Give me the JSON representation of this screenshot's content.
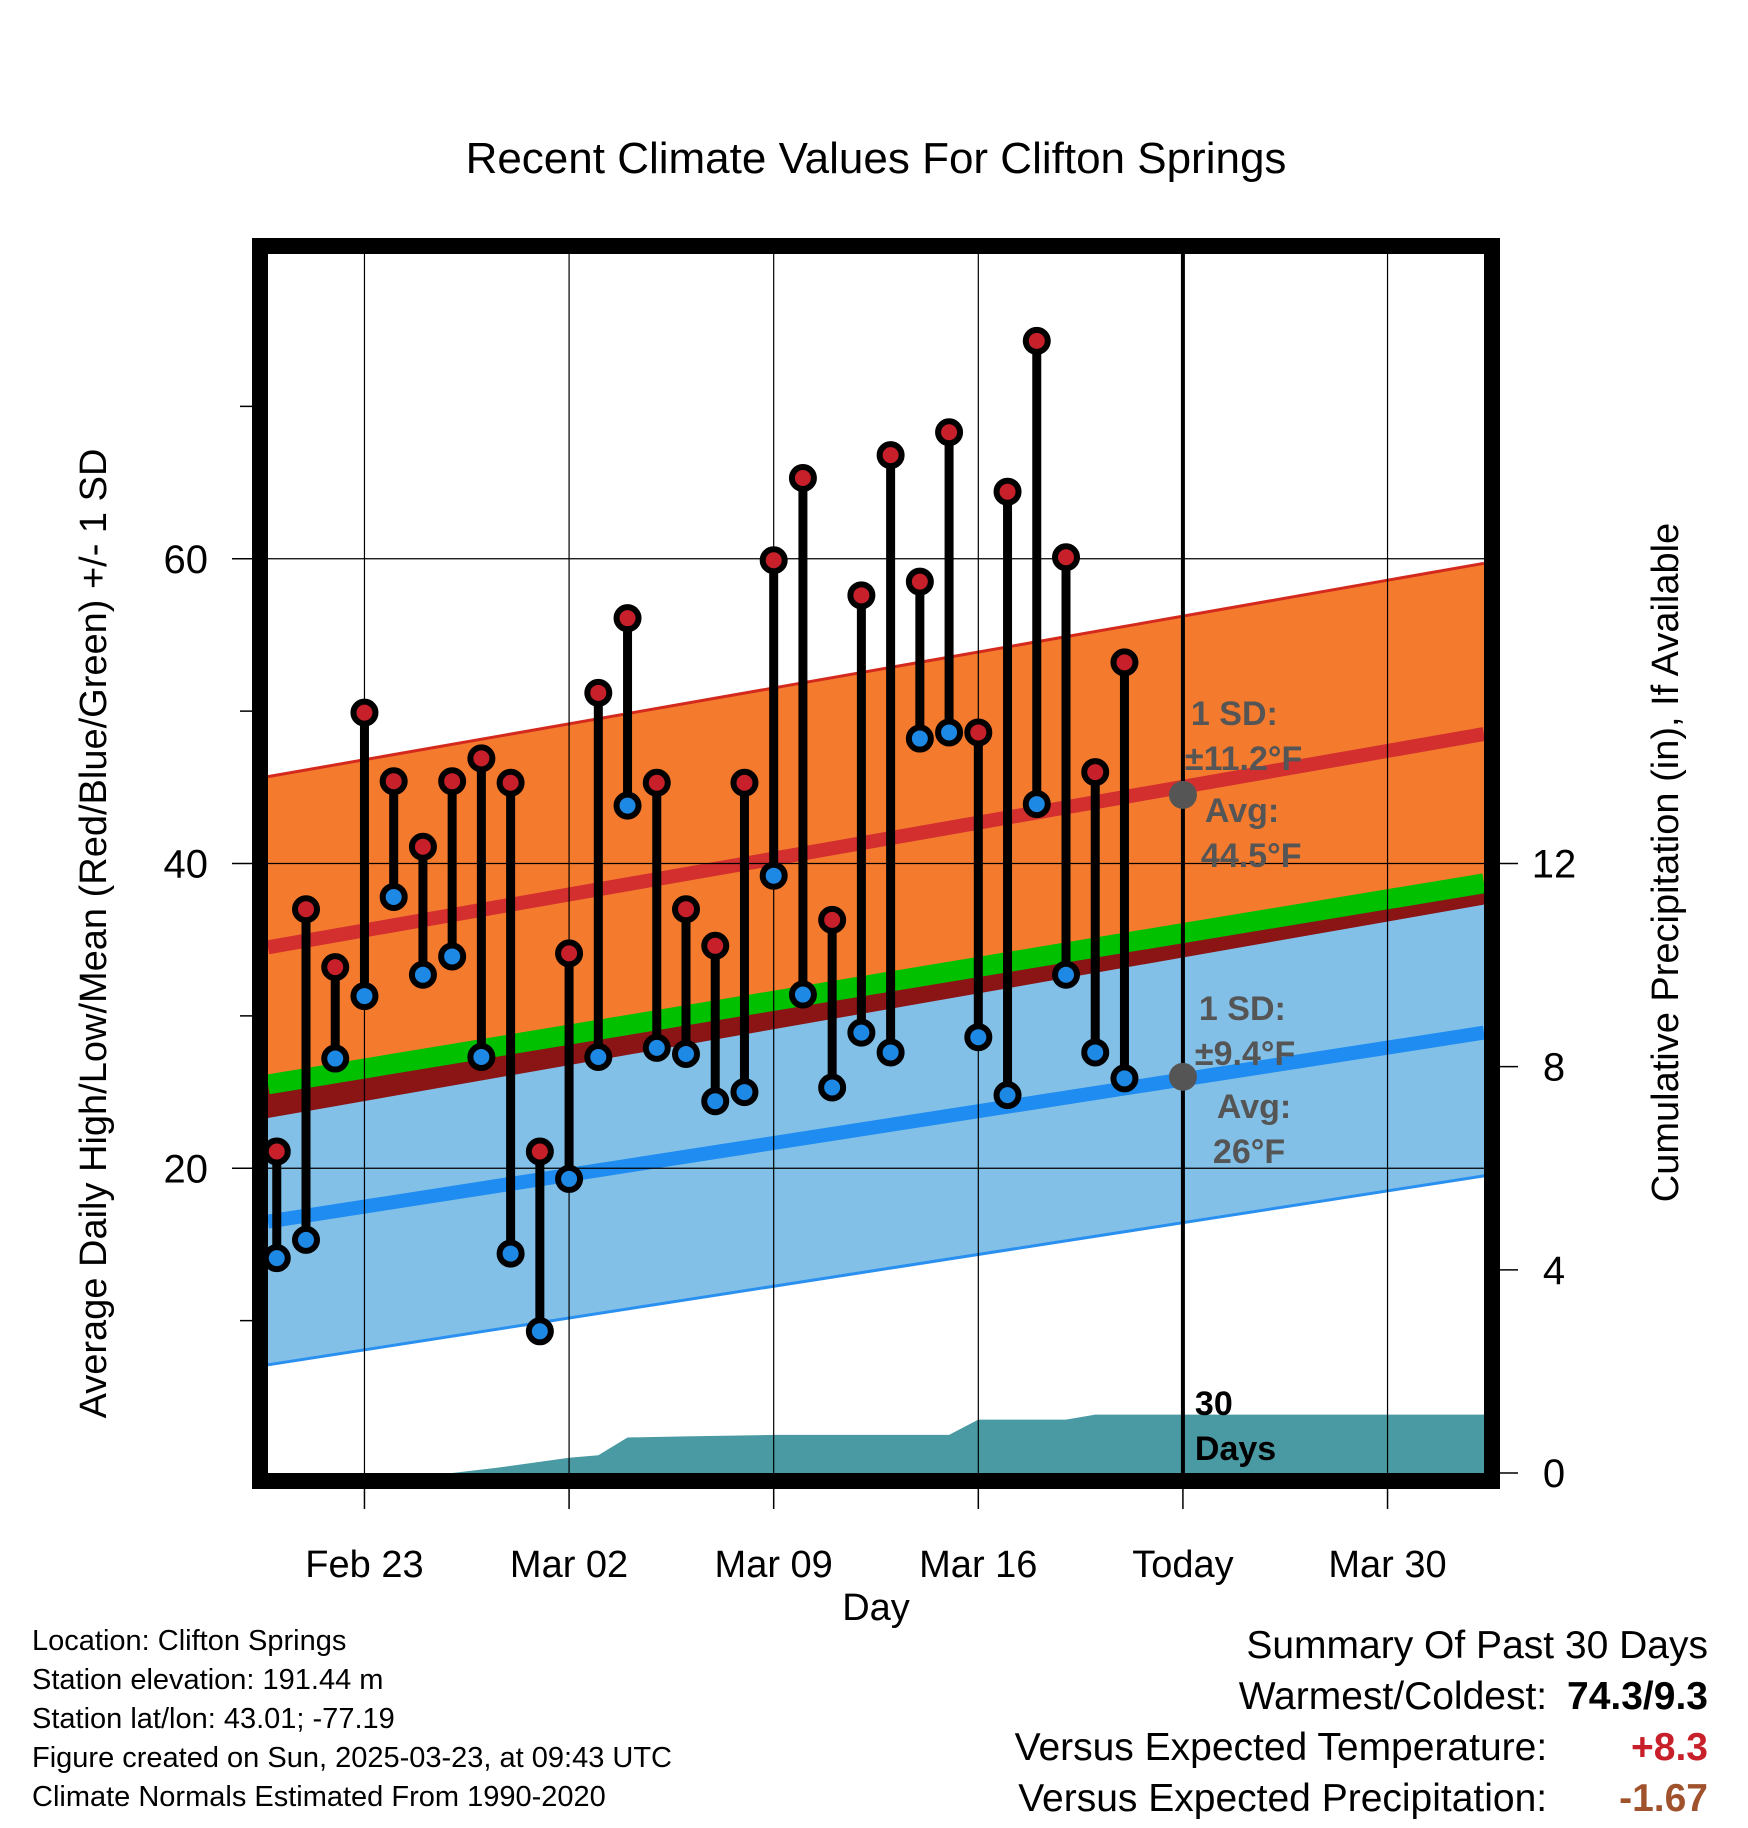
{
  "title": "Recent Climate Values For Clifton Springs",
  "chart_data": {
    "type": "scatter",
    "title": "Recent Climate Values For Clifton Springs",
    "xlabel": "Day",
    "ylabel": "Average Daily High/Low/Mean (Red/Blue/Green) +/- 1 SD",
    "y2label": "Cumulative Precipitation (in), If Available",
    "ylim": [
      0,
      80
    ],
    "y2lim": [
      0,
      24
    ],
    "yticks": [
      20,
      40,
      60
    ],
    "y2ticks": [
      0,
      4,
      8,
      12
    ],
    "xtick_labels": [
      {
        "day": 4,
        "label": "Feb 23"
      },
      {
        "day": 11,
        "label": "Mar 02"
      },
      {
        "day": 18,
        "label": "Mar 09"
      },
      {
        "day": 25,
        "label": "Mar 16"
      },
      {
        "day": 32,
        "label": "Today"
      },
      {
        "day": 39,
        "label": "Mar 30"
      }
    ],
    "x_range_days": [
      0.7,
      42.3
    ],
    "grid": true,
    "series": [
      {
        "name": "High",
        "color": "#c8202a",
        "values": [
          21.1,
          37,
          33.2,
          49.9,
          45.4,
          41.1,
          45.4,
          46.9,
          45.3,
          21.1,
          34.1,
          51.2,
          56.1,
          45.3,
          37,
          34.6,
          45.3,
          59.9,
          65.3,
          36.3,
          57.6,
          66.8,
          58.5,
          68.3,
          48.6,
          64.4,
          74.3,
          60.1,
          46,
          53.2
        ]
      },
      {
        "name": "Low",
        "color": "#1e88e5",
        "values": [
          14.1,
          15.3,
          27.2,
          31.3,
          37.8,
          32.7,
          33.9,
          27.3,
          14.4,
          9.3,
          19.3,
          27.3,
          43.8,
          27.9,
          27.5,
          24.4,
          25,
          39.2,
          31.4,
          25.3,
          28.9,
          27.6,
          48.2,
          48.6,
          28.6,
          24.8,
          43.9,
          32.7,
          27.6,
          25.9
        ]
      }
    ],
    "x_days": [
      1,
      2,
      3,
      4,
      5,
      6,
      7,
      8,
      9,
      10,
      11,
      12,
      13,
      14,
      15,
      16,
      17,
      18,
      19,
      20,
      21,
      22,
      23,
      24,
      25,
      26,
      27,
      28,
      29,
      30
    ],
    "normals": {
      "days": [
        0.7,
        42.3
      ],
      "high_mean": [
        34.5,
        48.5
      ],
      "high_sd_upper": [
        45.7,
        59.7
      ],
      "high_sd_lower": [
        23.3,
        37.3
      ],
      "low_mean": [
        16.5,
        28.9
      ],
      "low_sd_upper": [
        25.9,
        38.3
      ],
      "low_sd_lower": [
        7.1,
        19.5
      ],
      "mean": [
        25.5,
        38.7
      ]
    },
    "precip": {
      "days": [
        0.7,
        7,
        8.5,
        11,
        12,
        13,
        15,
        18,
        22,
        24,
        25,
        28,
        29,
        32,
        42.3
      ],
      "values": [
        0,
        0,
        0.1,
        0.3,
        0.35,
        0.7,
        0.72,
        0.75,
        0.75,
        0.75,
        1.05,
        1.05,
        1.15,
        1.15,
        1.15
      ],
      "color": "#4a9aa3"
    },
    "annotations": {
      "high_sd_title": "1 SD:",
      "high_sd_value": "±11.2°F",
      "high_avg_title": "Avg:",
      "high_avg_value": "44.5°F",
      "low_sd_title": "1 SD:",
      "low_sd_value": "±9.4°F",
      "low_avg_title": "Avg:",
      "low_avg_value": "26°F",
      "window_number": "30",
      "window_unit": "Days"
    },
    "today_markers": [
      {
        "day": 32,
        "value": 44.5
      },
      {
        "day": 32,
        "value": 26
      }
    ],
    "colors": {
      "high_band": "#f47b2e",
      "high_mean_line": "#d32f2f",
      "low_band": "#82c0e8",
      "low_mean_line": "#1e8cf0",
      "overlap_band": "#8b1414",
      "mean_line": "#00c000",
      "annotation_text": "#555555"
    }
  },
  "footer": {
    "location": "Location: Clifton Springs",
    "elevation": "Station elevation: 191.44 m",
    "latlon": "Station lat/lon: 43.01; -77.19",
    "created": "Figure created on Sun, 2025-03-23, at 09:43 UTC",
    "normals": "Climate Normals Estimated From 1990-2020"
  },
  "summary": {
    "heading": "Summary Of Past 30 Days",
    "warm_cold_label": "Warmest/Coldest:",
    "warm_cold_value": "74.3/9.3",
    "temp_label": "Versus Expected Temperature:",
    "temp_value": "+8.3",
    "temp_color": "#c8202a",
    "precip_label": "Versus Expected Precipitation:",
    "precip_value": "-1.67",
    "precip_color": "#a0522d"
  }
}
